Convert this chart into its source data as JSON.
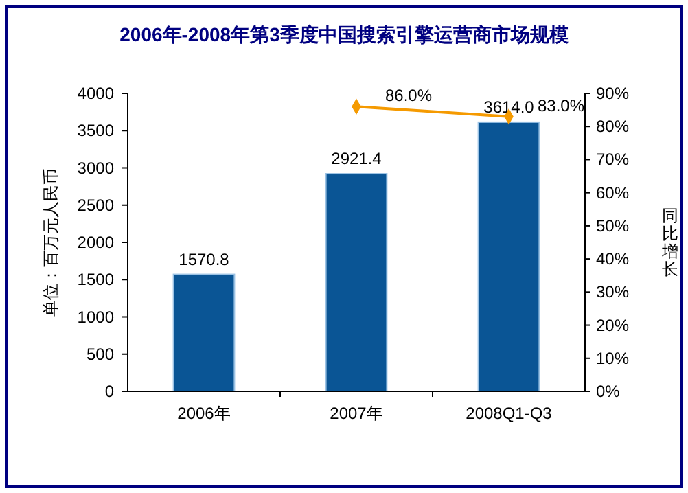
{
  "chart_data": {
    "type": "bar",
    "title": "2006年-2008年第3季度中国搜索引擎运营商市场规模",
    "ylabel": "单位：百万元人民币",
    "y2label": "同比增长",
    "categories": [
      "2006年",
      "2007年",
      "2008Q1-Q3"
    ],
    "series": [
      {
        "color": "#0a5595",
        "values": [
          1570.8,
          2921.4,
          3614.0
        ],
        "value_labels": [
          "1570.8",
          "2921.4",
          "3614.0"
        ]
      },
      {
        "type": "line",
        "axis": "y2",
        "color": "#f59a00",
        "marker": "diamond",
        "values": [
          null,
          86.0,
          83.0
        ],
        "value_labels": [
          null,
          "86.0%",
          "83.0%"
        ]
      }
    ],
    "data_labels": true,
    "ylim": [
      0,
      4000
    ],
    "yticks": [
      0,
      500,
      1000,
      1500,
      2000,
      2500,
      3000,
      3500,
      4000
    ],
    "y2lim": [
      0,
      90
    ],
    "y2ticks": [
      {
        "value": 0,
        "label": "0%"
      },
      {
        "value": 10,
        "label": "10%"
      },
      {
        "value": 20,
        "label": "20%"
      },
      {
        "value": 30,
        "label": "30%"
      },
      {
        "value": 40,
        "label": "40%"
      },
      {
        "value": 50,
        "label": "50%"
      },
      {
        "value": 60,
        "label": "60%"
      },
      {
        "value": 70,
        "label": "70%"
      },
      {
        "value": 80,
        "label": "80%"
      },
      {
        "value": 90,
        "label": "90%"
      }
    ],
    "grid": false
  }
}
